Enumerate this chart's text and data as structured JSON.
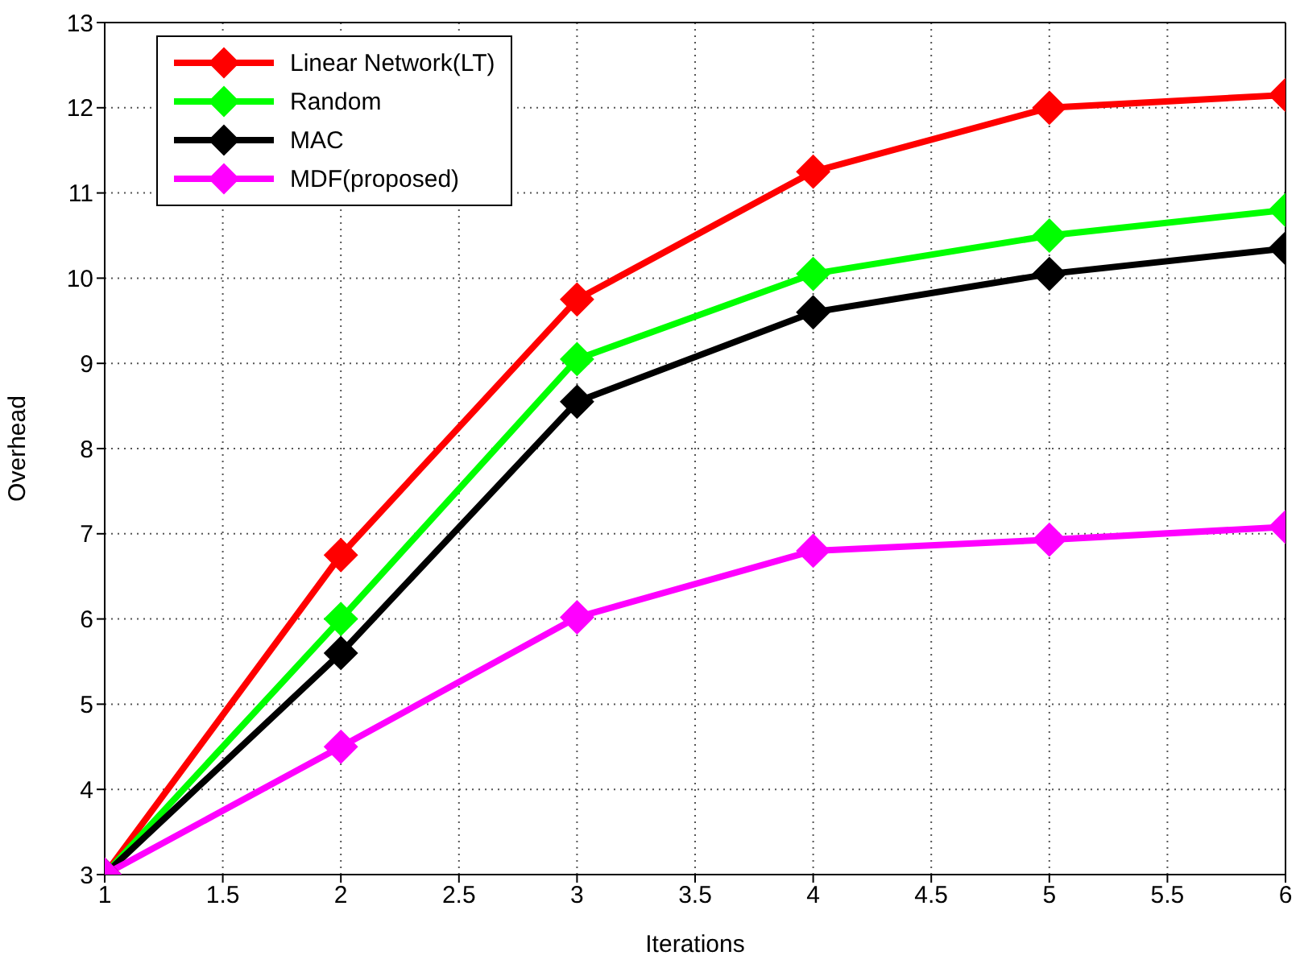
{
  "chart_data": {
    "type": "line",
    "xlabel": "Iterations",
    "ylabel": "Overhead",
    "x": [
      1,
      2,
      3,
      4,
      5,
      6
    ],
    "series": [
      {
        "name": "Linear Network(LT)",
        "color": "#ff0000",
        "values": [
          3,
          6.75,
          9.75,
          11.25,
          12.0,
          12.15
        ]
      },
      {
        "name": "Random",
        "color": "#00ff00",
        "values": [
          3,
          6.0,
          9.05,
          10.05,
          10.5,
          10.8
        ]
      },
      {
        "name": "MAC",
        "color": "#000000",
        "values": [
          3,
          5.6,
          8.55,
          9.6,
          10.05,
          10.35
        ]
      },
      {
        "name": "MDF(proposed)",
        "color": "#ff00ff",
        "values": [
          3,
          4.5,
          6.02,
          6.8,
          6.93,
          7.08
        ]
      }
    ],
    "xlim": [
      1,
      6
    ],
    "xticks": [
      1,
      1.5,
      2,
      2.5,
      3,
      3.5,
      4,
      4.5,
      5,
      5.5,
      6
    ],
    "ylim": [
      3,
      13
    ],
    "yticks": [
      3,
      4,
      5,
      6,
      7,
      8,
      9,
      10,
      11,
      12,
      13
    ],
    "grid": true,
    "legend": "top left",
    "marker": "diamond",
    "line_style": "solid"
  }
}
